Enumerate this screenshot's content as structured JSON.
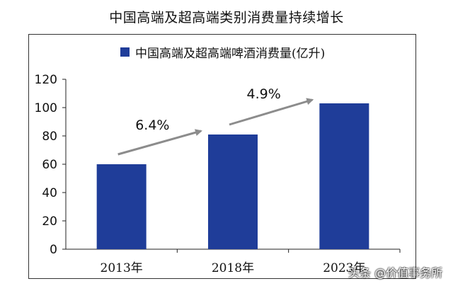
{
  "chart_data": {
    "type": "bar",
    "title": "中国高端及超高端类别消费量持续增长",
    "legend": "中国高端及超高端啤酒消费量(亿升)",
    "categories": [
      "2013年",
      "2018年",
      "2023年"
    ],
    "values": [
      60,
      81,
      103
    ],
    "ylim": [
      0,
      120
    ],
    "yticks": [
      0,
      20,
      40,
      60,
      80,
      100,
      120
    ],
    "bar_color": "#1f3d99",
    "annotations": [
      {
        "text": "6.4%",
        "from": "2013年",
        "to": "2018年"
      },
      {
        "text": "4.9%",
        "from": "2018年",
        "to": "2023年"
      }
    ],
    "grid": false,
    "legend_position": "top"
  },
  "watermark": "头条 @价值事务所"
}
